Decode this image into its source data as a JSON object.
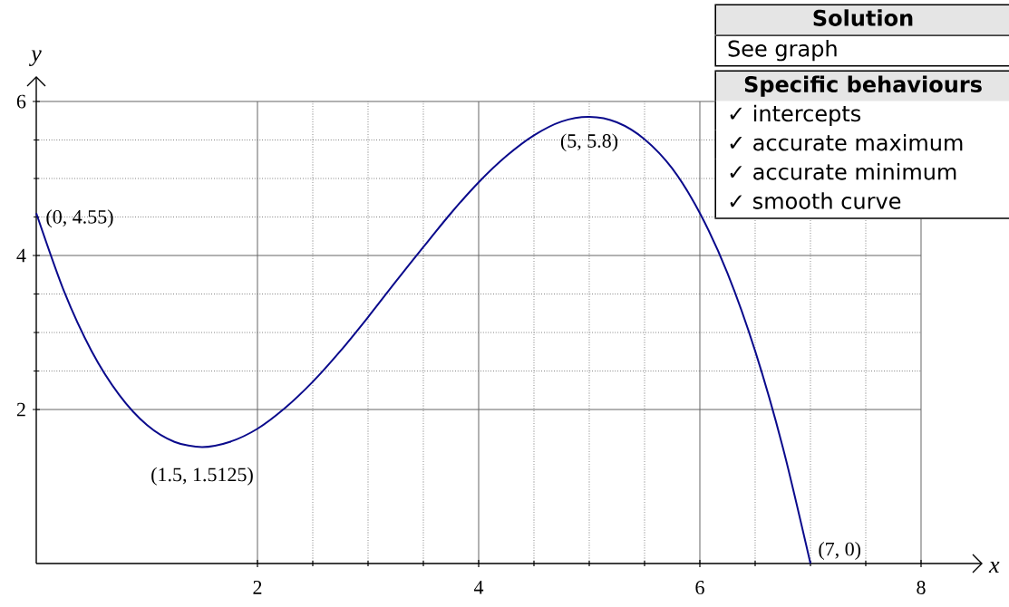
{
  "chart_data": {
    "type": "line",
    "xlabel": "x",
    "ylabel": "y",
    "xlim": [
      0,
      8
    ],
    "ylim": [
      0,
      6
    ],
    "xticks": [
      2,
      4,
      6,
      8
    ],
    "yticks": [
      2,
      4,
      6
    ],
    "grid": true,
    "x": [
      0,
      0.25,
      0.5,
      0.75,
      1,
      1.25,
      1.5,
      1.75,
      2,
      2.25,
      2.5,
      2.75,
      3,
      3.25,
      3.5,
      3.75,
      4,
      4.25,
      4.5,
      4.75,
      5,
      5.25,
      5.5,
      5.75,
      6,
      6.25,
      6.5,
      6.75,
      7
    ],
    "series": [
      {
        "color": "#0a0a8c",
        "values": [
          4.55,
          3.54,
          2.76,
          2.19,
          1.8,
          1.58,
          1.5125,
          1.58,
          1.75,
          2.02,
          2.36,
          2.76,
          3.2,
          3.66,
          4.11,
          4.55,
          4.95,
          5.29,
          5.56,
          5.74,
          5.8,
          5.73,
          5.51,
          5.13,
          4.55,
          3.77,
          2.76,
          1.51,
          0
        ]
      }
    ],
    "annotations": [
      {
        "text": "(0, 4.55)",
        "x": 0,
        "y": 4.55
      },
      {
        "text": "(1.5, 1.5125)",
        "x": 1.5,
        "y": 1.5125
      },
      {
        "text": "(5, 5.8)",
        "x": 5,
        "y": 5.8
      },
      {
        "text": "(7, 0)",
        "x": 7,
        "y": 0
      },
      "Solution",
      "See graph",
      "Specific behaviours",
      "✓ intercepts",
      "✓ accurate maximum",
      "✓ accurate minimum",
      "✓ smooth curve"
    ]
  }
}
